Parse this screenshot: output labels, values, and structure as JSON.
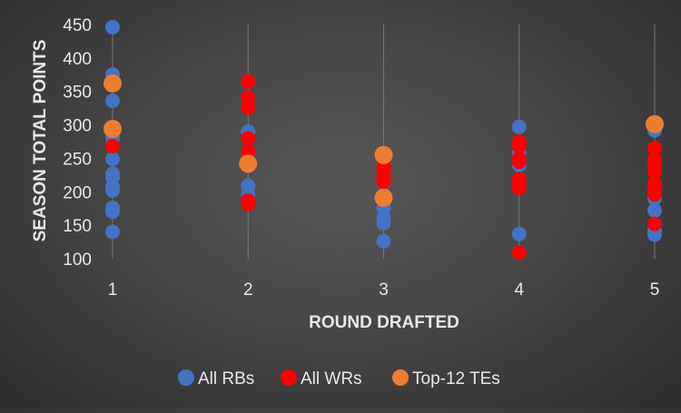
{
  "chart_data": {
    "type": "scatter",
    "xlabel": "ROUND DRAFTED",
    "ylabel": "SEASON TOTAL POINTS",
    "xlim": [
      1,
      5
    ],
    "ylim": [
      100,
      450
    ],
    "x_ticks": [
      "1",
      "2",
      "3",
      "4",
      "5"
    ],
    "y_ticks": [
      "100",
      "150",
      "200",
      "250",
      "300",
      "350",
      "400",
      "450"
    ],
    "grid": "vertical",
    "legend_position": "bottom",
    "series": [
      {
        "name": "All RBs",
        "color": "#4472c4",
        "points": [
          [
            1,
            446
          ],
          [
            1,
            375
          ],
          [
            1,
            365
          ],
          [
            1,
            336
          ],
          [
            1,
            290
          ],
          [
            1,
            280
          ],
          [
            1,
            249
          ],
          [
            1,
            227
          ],
          [
            1,
            222
          ],
          [
            1,
            208
          ],
          [
            1,
            202
          ],
          [
            1,
            176
          ],
          [
            1,
            170
          ],
          [
            1,
            140
          ],
          [
            2,
            290
          ],
          [
            2,
            209
          ],
          [
            2,
            196
          ],
          [
            2,
            183
          ],
          [
            3,
            214
          ],
          [
            3,
            176
          ],
          [
            3,
            161
          ],
          [
            3,
            153
          ],
          [
            3,
            126
          ],
          [
            4,
            297
          ],
          [
            4,
            258
          ],
          [
            4,
            240
          ],
          [
            4,
            137
          ],
          [
            5,
            292
          ],
          [
            5,
            190
          ],
          [
            5,
            172
          ],
          [
            5,
            142
          ],
          [
            5,
            136
          ]
        ]
      },
      {
        "name": "All WRs",
        "color": "#ff0000",
        "points": [
          [
            1,
            268
          ],
          [
            2,
            365
          ],
          [
            2,
            341
          ],
          [
            2,
            326
          ],
          [
            2,
            280
          ],
          [
            2,
            260
          ],
          [
            2,
            187
          ],
          [
            2,
            182
          ],
          [
            3,
            238
          ],
          [
            3,
            230
          ],
          [
            3,
            222
          ],
          [
            3,
            215
          ],
          [
            4,
            275
          ],
          [
            4,
            268
          ],
          [
            4,
            250
          ],
          [
            4,
            245
          ],
          [
            4,
            219
          ],
          [
            4,
            212
          ],
          [
            4,
            206
          ],
          [
            4,
            109
          ],
          [
            5,
            265
          ],
          [
            5,
            248
          ],
          [
            5,
            238
          ],
          [
            5,
            230
          ],
          [
            5,
            213
          ],
          [
            5,
            205
          ],
          [
            5,
            196
          ],
          [
            5,
            152
          ]
        ]
      },
      {
        "name": "Top-12 TEs",
        "color": "#ed7d31",
        "points": [
          [
            1,
            362
          ],
          [
            1,
            294
          ],
          [
            2,
            242
          ],
          [
            3,
            255
          ],
          [
            3,
            191
          ],
          [
            5,
            301
          ]
        ]
      }
    ]
  }
}
